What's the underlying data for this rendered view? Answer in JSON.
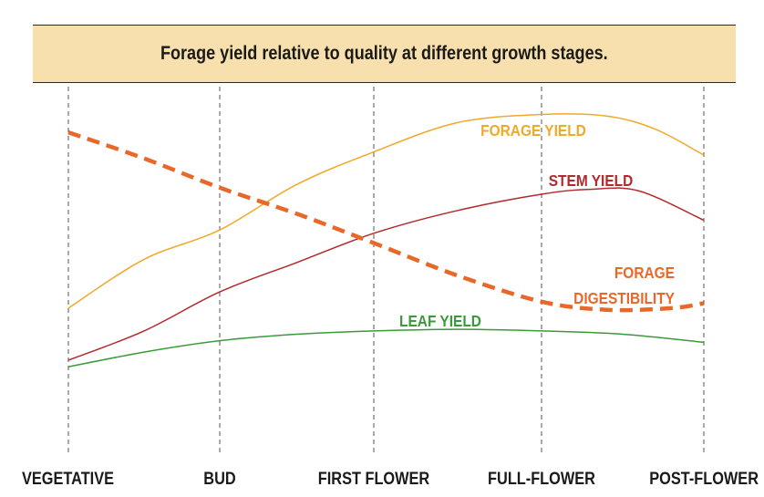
{
  "chart_data": {
    "type": "line",
    "title": "Forage yield relative to quality at different growth stages.",
    "xlabel": "",
    "ylabel": "",
    "categories": [
      "VEGETATIVE",
      "BUD",
      "FIRST FLOWER",
      "FULL-FLOWER",
      "POST-FLOWER"
    ],
    "x": [
      0,
      1,
      2,
      3,
      4
    ],
    "ylim": [
      0,
      100
    ],
    "grid": "vertical-dashed",
    "legend": "inline-labels",
    "series": [
      {
        "name": "FORAGE YIELD",
        "color": "#f0a929",
        "style": "solid",
        "label_lines": [
          "FORAGE YIELD"
        ],
        "x": [
          0,
          0.5,
          1,
          1.5,
          2,
          2.5,
          3,
          3.4,
          3.7,
          4
        ],
        "values": [
          37,
          52,
          61,
          75,
          85,
          94,
          96.5,
          96,
          92,
          84
        ]
      },
      {
        "name": "STEM YIELD",
        "color": "#b22a2e",
        "style": "solid",
        "label_lines": [
          "STEM YIELD"
        ],
        "x": [
          0,
          0.5,
          1,
          1.5,
          2,
          2.5,
          3,
          3.3,
          3.6,
          4
        ],
        "values": [
          21,
          30,
          42,
          51,
          60,
          67,
          72,
          73.5,
          73,
          64
        ]
      },
      {
        "name": "LEAF YIELD",
        "color": "#3c9a3a",
        "style": "solid",
        "label_lines": [
          "LEAF YIELD"
        ],
        "x": [
          0,
          0.5,
          1,
          1.5,
          2,
          2.5,
          3,
          3.5,
          4
        ],
        "values": [
          19,
          23.5,
          27,
          29,
          30,
          30.5,
          30,
          29,
          26.5
        ]
      },
      {
        "name": "FORAGE DIGESTIBILITY",
        "color": "#e8682a",
        "style": "dashed",
        "label_lines": [
          "FORAGE",
          "DIGESTIBILITY"
        ],
        "x": [
          0,
          0.5,
          1,
          1.5,
          2,
          2.5,
          3,
          3.4,
          3.8,
          4
        ],
        "values": [
          91,
          83,
          74,
          66,
          57,
          47,
          39,
          36.5,
          37,
          38.5
        ]
      }
    ]
  }
}
